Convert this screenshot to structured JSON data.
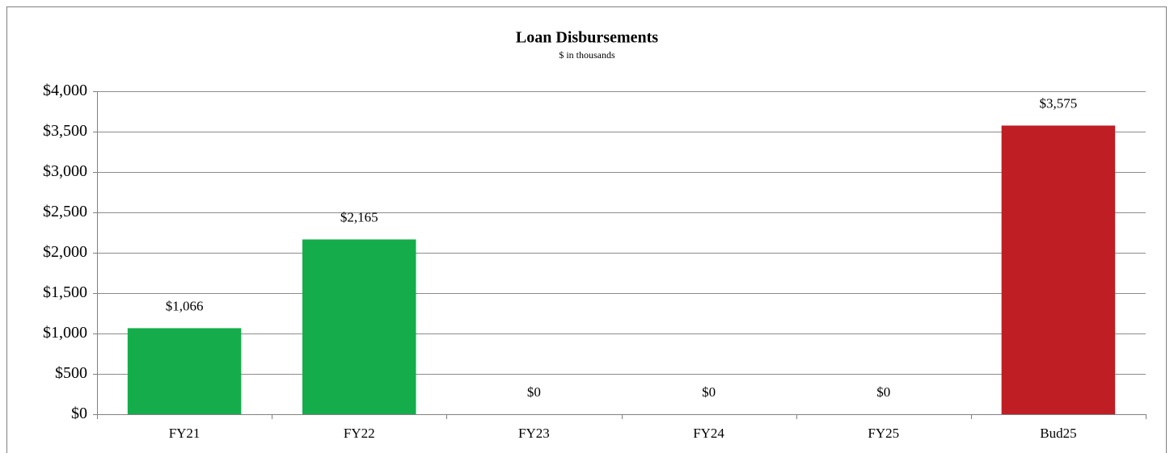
{
  "chart_data": {
    "type": "bar",
    "title": "Loan Disbursements",
    "subtitle": "$ in thousands",
    "categories": [
      "FY21",
      "FY22",
      "FY23",
      "FY24",
      "FY25",
      "Bud25"
    ],
    "values": [
      1066,
      2165,
      0,
      0,
      0,
      3575
    ],
    "value_labels": [
      "$1,066",
      "$2,165",
      "$0",
      "$0",
      "$0",
      "$3,575"
    ],
    "colors": [
      "#15ad4b",
      "#15ad4b",
      "#15ad4b",
      "#15ad4b",
      "#15ad4b",
      "#be1e24"
    ],
    "ylim": [
      0,
      4000
    ],
    "yticks": [
      {
        "value": 0,
        "label": "$0"
      },
      {
        "value": 500,
        "label": "$500"
      },
      {
        "value": 1000,
        "label": "$1,000"
      },
      {
        "value": 1500,
        "label": "$1,500"
      },
      {
        "value": 2000,
        "label": "$2,000"
      },
      {
        "value": 2500,
        "label": "$2,500"
      },
      {
        "value": 3000,
        "label": "$3,000"
      },
      {
        "value": 3500,
        "label": "$3,500"
      },
      {
        "value": 4000,
        "label": "$4,000"
      }
    ],
    "grid": true
  }
}
